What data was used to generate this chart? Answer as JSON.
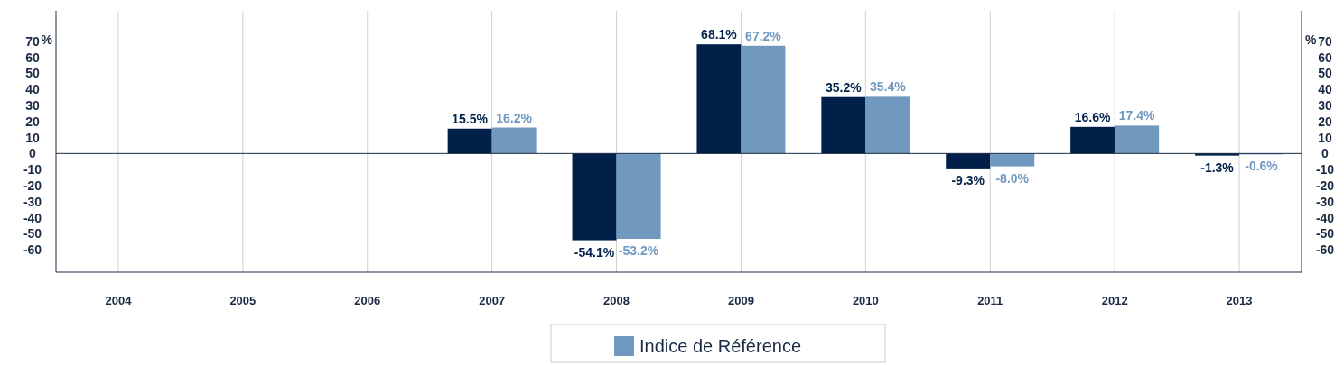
{
  "chart_data": {
    "type": "bar",
    "categories": [
      "2004",
      "2005",
      "2006",
      "2007",
      "2008",
      "2009",
      "2010",
      "2011",
      "2012",
      "2013"
    ],
    "series": [
      {
        "color": "#00204a",
        "values": [
          null,
          null,
          null,
          15.5,
          -54.1,
          68.1,
          35.2,
          -9.3,
          16.6,
          -1.3
        ],
        "value_labels": [
          null,
          null,
          null,
          "15.5%",
          "-54.1%",
          "68.1%",
          "35.2%",
          "-9.3%",
          "16.6%",
          "-1.3%"
        ]
      },
      {
        "name": "Indice de Référence",
        "color": "#7199c0",
        "values": [
          null,
          null,
          null,
          16.2,
          -53.2,
          67.2,
          35.4,
          -8.0,
          17.4,
          -0.6
        ],
        "value_labels": [
          null,
          null,
          null,
          "16.2%",
          "-53.2%",
          "67.2%",
          "35.4%",
          "-8.0%",
          "17.4%",
          "-0.6%"
        ]
      }
    ],
    "ylabel": "%",
    "y2label": "%",
    "ylim": [
      -74,
      89
    ],
    "yticks": [
      -60,
      -50,
      -40,
      -30,
      -20,
      -10,
      0,
      10,
      20,
      30,
      40,
      50,
      60,
      70
    ],
    "y2lim": [
      -74,
      89
    ],
    "y2ticks": [
      -60,
      -50,
      -40,
      -30,
      -20,
      -10,
      0,
      10,
      20,
      30,
      40,
      50,
      60,
      70
    ],
    "grid": "x",
    "legend": "bottom"
  }
}
